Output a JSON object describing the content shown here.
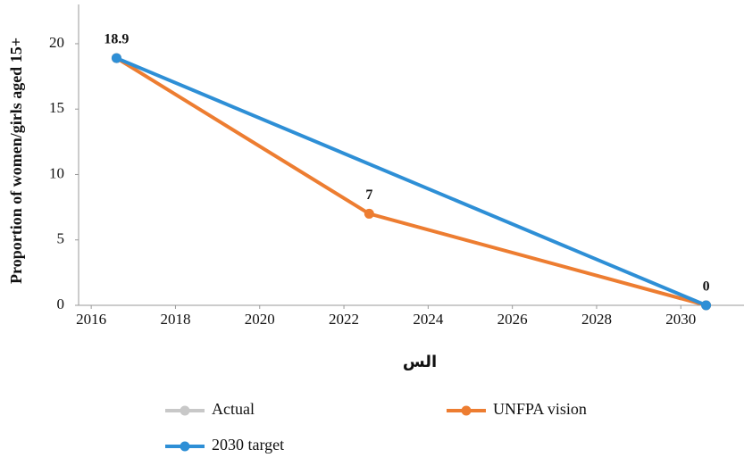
{
  "chart_data": {
    "type": "line",
    "xlabel": "الس",
    "ylabel": "Proportion of women/girls aged 15+",
    "series": [
      {
        "name": "Actual",
        "color": "#c8c8c8",
        "x": [],
        "values": []
      },
      {
        "name": "UNFPA vision",
        "color": "#ed7d31",
        "x": [
          2016.6,
          2022.6,
          2030.6
        ],
        "values": [
          18.9,
          7,
          0
        ]
      },
      {
        "name": "2030 target",
        "color": "#2e8fd6",
        "x": [
          2016.6,
          2030.6
        ],
        "values": [
          18.9,
          0
        ]
      }
    ],
    "labeled_series": 1,
    "xlim": [
      2015.7,
      2031.5
    ],
    "xticks": [
      2016,
      2018,
      2020,
      2022,
      2024,
      2026,
      2028,
      2030
    ],
    "ylim": [
      0,
      23
    ],
    "yticks": [
      0,
      5,
      10,
      15,
      20
    ],
    "grid": false
  }
}
